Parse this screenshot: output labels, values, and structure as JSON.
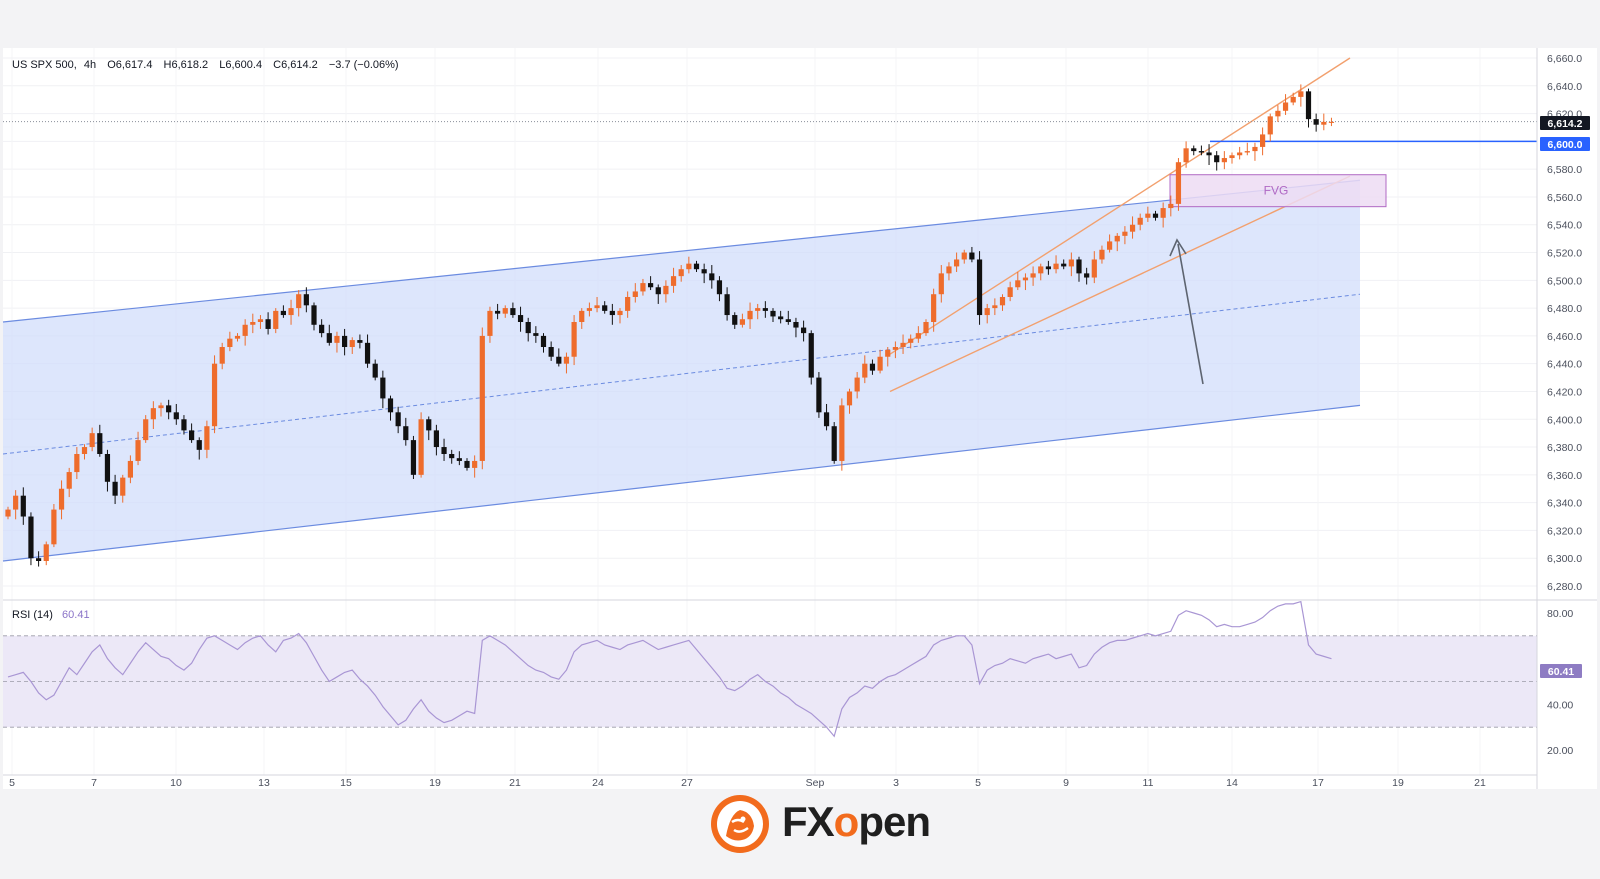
{
  "colors": {
    "up": "#ee6c2c",
    "down": "#111111",
    "channel_fill": "#cfdcfb",
    "channel_line": "#6b8be0",
    "rising_channel": "#f2a06e",
    "level_line": "#2962ff",
    "fvg_fill": "#eddcf3",
    "fvg_border": "#b069c4",
    "rsi_line": "#a996d4",
    "rsi_band": "#ece8f7",
    "brand_orange": "#f26b1d"
  },
  "header": {
    "symbol": "US SPX 500,",
    "timeframe": "4h",
    "open": "O6,617.4",
    "high": "H6,618.2",
    "low": "L6,600.4",
    "close": "C6,614.2",
    "change": "−3.7 (−0.06%)"
  },
  "price_badges": {
    "last": "6,614.2",
    "level": "6,600.0"
  },
  "annotations": {
    "fvg_label": "FVG"
  },
  "rsi": {
    "label": "RSI (14)",
    "value": "60.41",
    "badge": "60.41",
    "ticks": [
      "80.00",
      "60.41",
      "40.00",
      "20.00"
    ]
  },
  "logo": {
    "text_fx": "FX",
    "text_o": "o",
    "text_pen": "pen",
    "icon": "tiger-head-icon"
  },
  "chart_data": {
    "type": "candlestick",
    "instrument": "US SPX 500",
    "interval": "4h",
    "y_range": [
      6280,
      6660
    ],
    "y_ticks": [
      "6,660.0",
      "6,640.0",
      "6,620.0",
      "6,600.0",
      "6,580.0",
      "6,560.0",
      "6,540.0",
      "6,520.0",
      "6,500.0",
      "6,480.0",
      "6,460.0",
      "6,440.0",
      "6,420.0",
      "6,400.0",
      "6,380.0",
      "6,360.0",
      "6,340.0",
      "6,320.0",
      "6,300.0",
      "6,280.0"
    ],
    "x_ticks": [
      "5",
      "7",
      "10",
      "13",
      "15",
      "19",
      "21",
      "24",
      "27",
      "Sep",
      "3",
      "5",
      "9",
      "11",
      "14",
      "17",
      "19",
      "21"
    ],
    "horizontal_level": 6600,
    "last_price": 6614.2,
    "fvg_zone": [
      6553,
      6576
    ],
    "close_series": [
      6335,
      6345,
      6330,
      6300,
      6298,
      6310,
      6335,
      6350,
      6362,
      6375,
      6380,
      6390,
      6375,
      6355,
      6345,
      6358,
      6370,
      6385,
      6400,
      6408,
      6410,
      6405,
      6400,
      6392,
      6385,
      6378,
      6395,
      6440,
      6452,
      6458,
      6460,
      6468,
      6470,
      6472,
      6465,
      6478,
      6475,
      6480,
      6490,
      6482,
      6468,
      6462,
      6455,
      6460,
      6452,
      6457,
      6455,
      6440,
      6430,
      6415,
      6405,
      6395,
      6385,
      6360,
      6400,
      6392,
      6380,
      6375,
      6372,
      6370,
      6365,
      6370,
      6460,
      6478,
      6476,
      6480,
      6475,
      6470,
      6462,
      6460,
      6452,
      6445,
      6440,
      6445,
      6470,
      6478,
      6480,
      6482,
      6478,
      6475,
      6478,
      6488,
      6492,
      6498,
      6495,
      6490,
      6496,
      6503,
      6508,
      6512,
      6508,
      6505,
      6500,
      6490,
      6475,
      6468,
      6472,
      6478,
      6480,
      6478,
      6474,
      6472,
      6470,
      6466,
      6462,
      6430,
      6405,
      6395,
      6370,
      6410,
      6420,
      6430,
      6440,
      6435,
      6445,
      6450,
      6452,
      6455,
      6458,
      6462,
      6470,
      6490,
      6505,
      6510,
      6515,
      6520,
      6515,
      6475,
      6480,
      6482,
      6488,
      6495,
      6500,
      6502,
      6505,
      6510,
      6508,
      6512,
      6510,
      6515,
      6505,
      6502,
      6515,
      6522,
      6528,
      6532,
      6535,
      6540,
      6545,
      6548,
      6545,
      6552,
      6555,
      6585,
      6595,
      6593,
      6592,
      6590,
      6585,
      6588,
      6590,
      6592,
      6593,
      6596,
      6605,
      6618,
      6622,
      6628,
      6632,
      6636,
      6616,
      6612,
      6614,
      6614
    ],
    "rising_channel": {
      "start": [
        6420,
        6585
      ],
      "end": [
        6575,
        6660
      ]
    },
    "regression_channel": {
      "upper": [
        6470,
        6572
      ],
      "middle": [
        6375,
        6490
      ],
      "lower": [
        6298,
        6410
      ]
    },
    "rsi_series": [
      52,
      53,
      54,
      50,
      45,
      42,
      44,
      50,
      56,
      53,
      58,
      63,
      66,
      60,
      56,
      53,
      58,
      63,
      67,
      64,
      61,
      60,
      57,
      55,
      58,
      64,
      69,
      70,
      68,
      66,
      64,
      67,
      69,
      70,
      66,
      63,
      68,
      69,
      71,
      67,
      61,
      55,
      50,
      52,
      54,
      55,
      51,
      48,
      44,
      39,
      35,
      31,
      33,
      38,
      42,
      37,
      34,
      32,
      33,
      35,
      37,
      36,
      68,
      70,
      68,
      66,
      63,
      60,
      57,
      55,
      54,
      52,
      51,
      55,
      63,
      66,
      67,
      68,
      66,
      65,
      64,
      66,
      67,
      68,
      66,
      64,
      65,
      66,
      67,
      68,
      64,
      60,
      56,
      52,
      47,
      46,
      48,
      51,
      53,
      50,
      48,
      45,
      43,
      40,
      38,
      36,
      33,
      30,
      26,
      38,
      43,
      45,
      48,
      47,
      50,
      52,
      53,
      55,
      57,
      59,
      61,
      66,
      68,
      69,
      70,
      70,
      66,
      49,
      55,
      57,
      58,
      60,
      59,
      58,
      60,
      61,
      62,
      60,
      61,
      62,
      56,
      57,
      62,
      65,
      67,
      68,
      68,
      69,
      70,
      71,
      70,
      71,
      72,
      79,
      81,
      80,
      79,
      77,
      74,
      75,
      74,
      74,
      75,
      76,
      78,
      81,
      83,
      84,
      84,
      85,
      66,
      62,
      61,
      60
    ]
  }
}
